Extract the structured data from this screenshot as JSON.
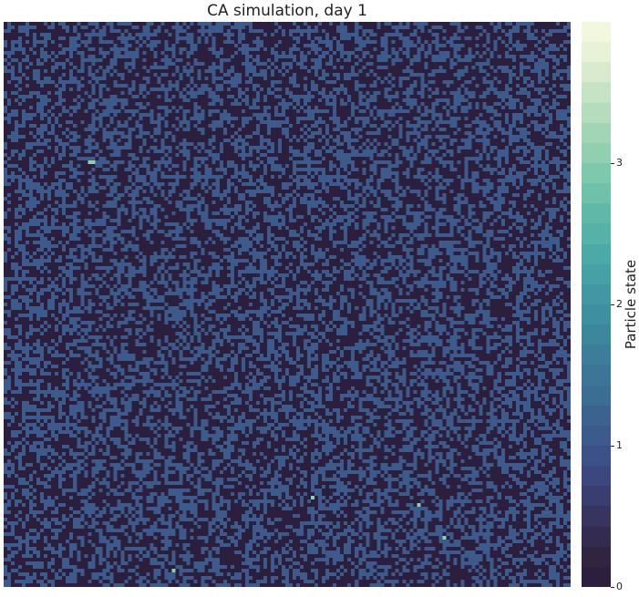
{
  "chart_data": {
    "type": "heatmap",
    "title": "CA simulation, day 1",
    "grid": {
      "rows": 155,
      "cols": 155
    },
    "state_fractions_estimate": {
      "0": 0.55,
      "1": 0.445
    },
    "highlighted_cells": [
      {
        "row": 38,
        "col": 23,
        "value": 3
      },
      {
        "row": 38,
        "col": 24,
        "value": 3
      },
      {
        "row": 130,
        "col": 84,
        "value": 3
      },
      {
        "row": 132,
        "col": 113,
        "value": 3
      },
      {
        "row": 141,
        "col": 120,
        "value": 3
      },
      {
        "row": 150,
        "col": 46,
        "value": 3
      }
    ],
    "colorbar": {
      "label": "Particle state",
      "range": [
        0,
        4
      ],
      "ticks": [
        "0",
        "1",
        "2",
        "3"
      ],
      "colors": [
        "#2c1e3d",
        "#30243f",
        "#342c4f",
        "#373460",
        "#393d6f",
        "#3b477e",
        "#3c5188",
        "#3c5a8c",
        "#3c638f",
        "#3c6d93",
        "#3c7596",
        "#3c7e99",
        "#3c879c",
        "#3e8f9f",
        "#4198a2",
        "#46a1a4",
        "#4caaa6",
        "#56b1a7",
        "#60b9a8",
        "#6fc1a9",
        "#7ec8ab",
        "#90cfaf",
        "#a2d5b5",
        "#b5dcbc",
        "#c6e3c5",
        "#d8ebcf",
        "#e8f2d8",
        "#f2f7df"
      ]
    }
  }
}
